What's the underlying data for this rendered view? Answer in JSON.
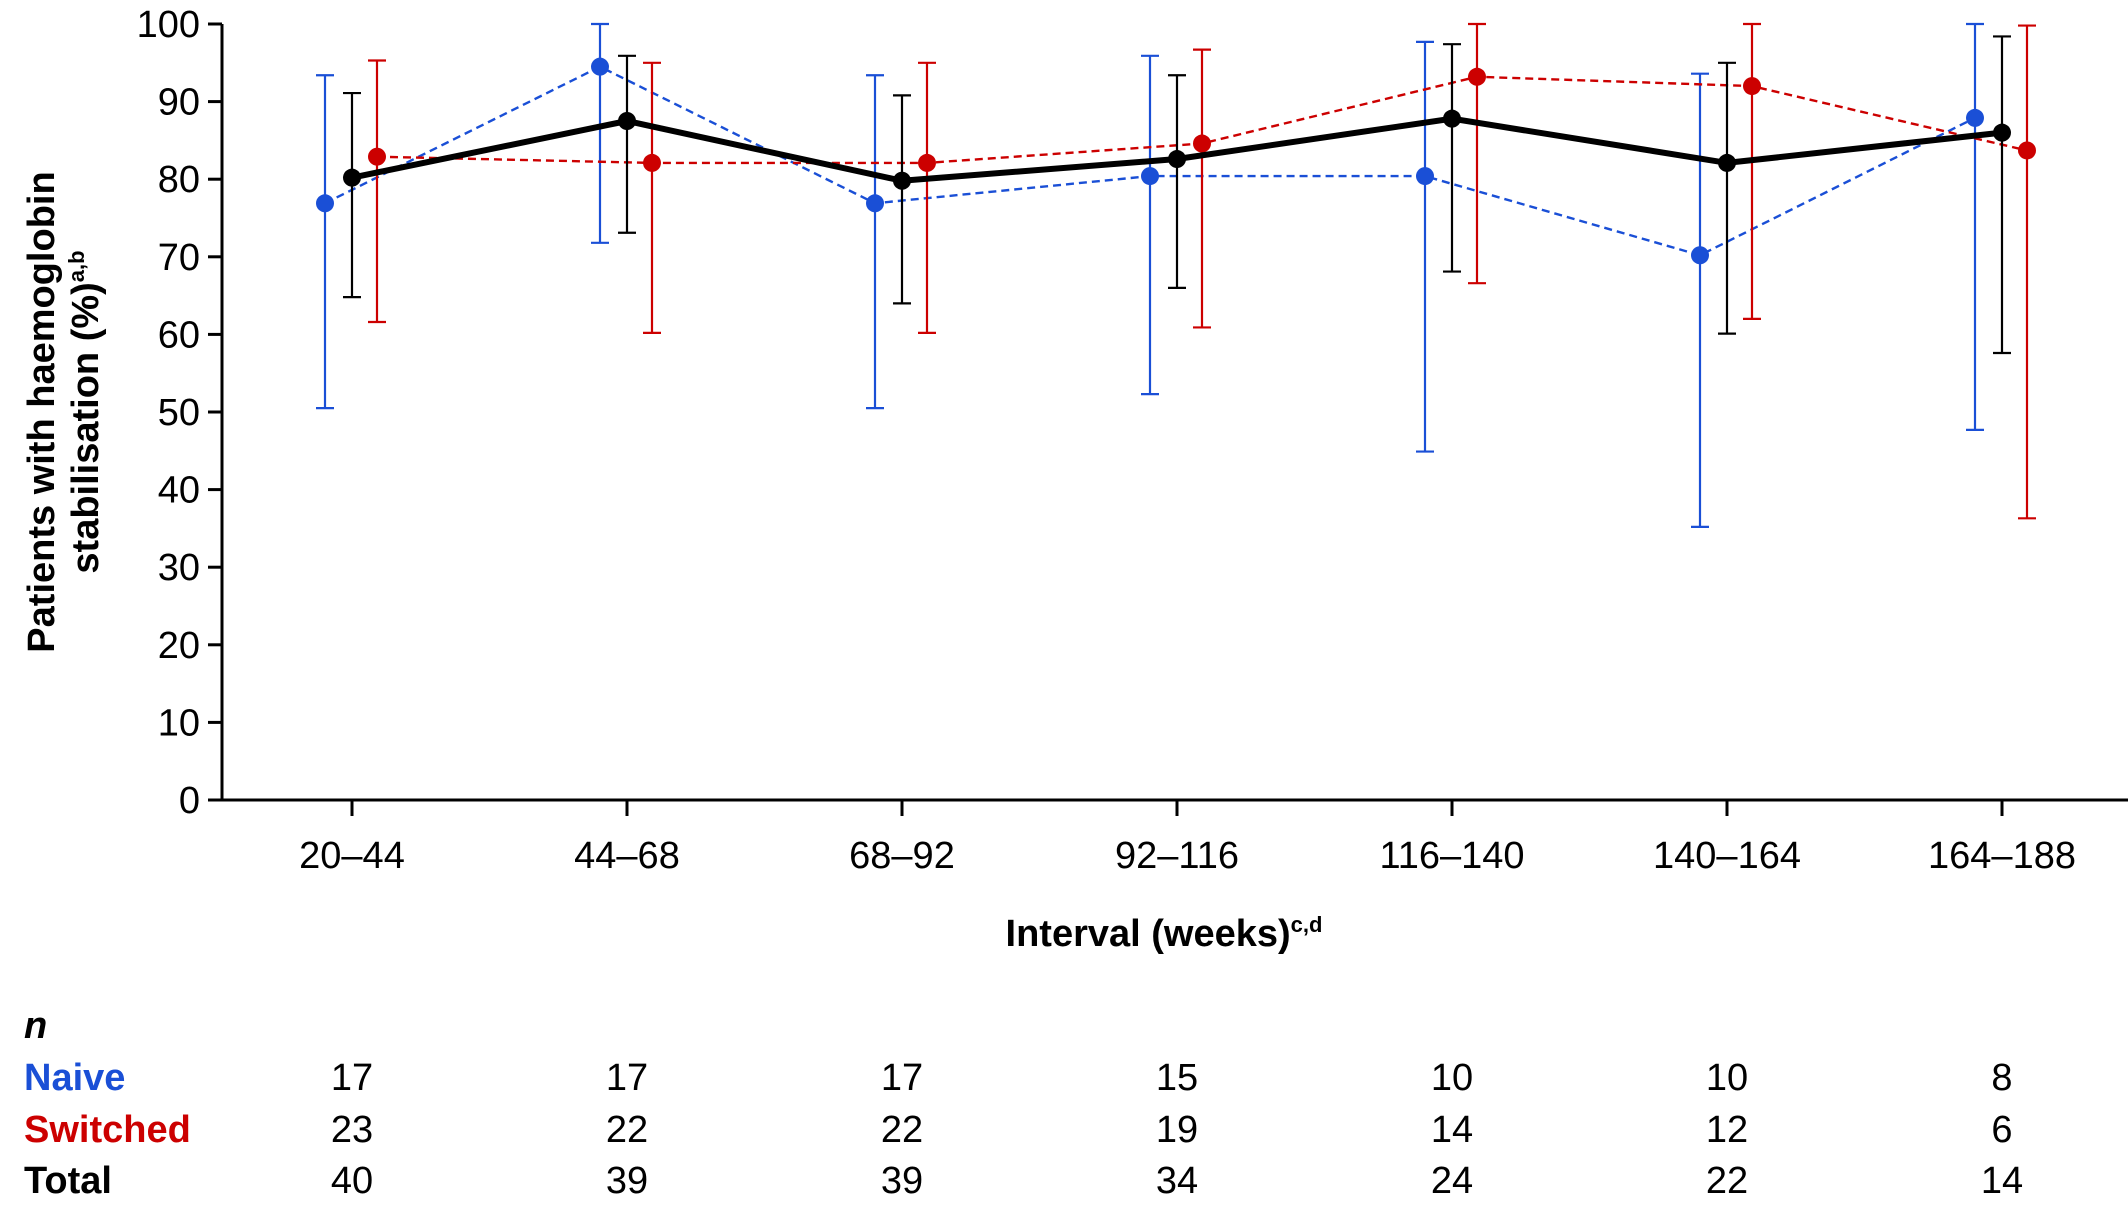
{
  "chart_data": {
    "type": "line",
    "xlabel": "Interval (weeks)",
    "xlabel_sup": "c,d",
    "ylabel_line1": "Patients with haemoglobin",
    "ylabel_line2": "stabilisation (%)",
    "ylabel_sup": "a,b",
    "ylim": [
      0,
      100
    ],
    "yticks": [
      0,
      10,
      20,
      30,
      40,
      50,
      60,
      70,
      80,
      90,
      100
    ],
    "categories": [
      "20–44",
      "44–68",
      "68–92",
      "92–116",
      "116–140",
      "140–164",
      "164–188"
    ],
    "grid": false,
    "series": [
      {
        "name": "Naive",
        "color": "#1a4fd6",
        "style": "dashed",
        "values": [
          76.9,
          94.5,
          76.9,
          80.4,
          80.4,
          70.2,
          87.9
        ],
        "err_low": [
          50.5,
          71.8,
          50.5,
          52.3,
          44.9,
          35.2,
          47.7
        ],
        "err_high": [
          93.4,
          100,
          93.4,
          95.9,
          97.7,
          93.6,
          100
        ]
      },
      {
        "name": "Switched",
        "color": "#cc0000",
        "style": "dashed",
        "values": [
          82.9,
          82.1,
          82.1,
          84.6,
          93.2,
          92.0,
          83.7
        ],
        "err_low": [
          61.6,
          60.2,
          60.2,
          60.9,
          66.6,
          62.0,
          36.3
        ],
        "err_high": [
          95.3,
          95.0,
          95.0,
          96.7,
          100,
          100,
          99.8
        ]
      },
      {
        "name": "Total",
        "color": "#000000",
        "style": "solid",
        "values": [
          80.2,
          87.5,
          79.8,
          82.6,
          87.8,
          82.1,
          86.0
        ],
        "err_low": [
          64.8,
          73.1,
          64.0,
          66.0,
          68.1,
          60.1,
          57.6
        ],
        "err_high": [
          91.1,
          95.9,
          90.8,
          93.4,
          97.4,
          95.0,
          98.4
        ]
      }
    ]
  },
  "n_table": {
    "header": "n",
    "rows": [
      {
        "label": "Naive",
        "color": "#1a4fd6",
        "values": [
          "17",
          "17",
          "17",
          "15",
          "10",
          "10",
          "8"
        ]
      },
      {
        "label": "Switched",
        "color": "#cc0000",
        "values": [
          "23",
          "22",
          "22",
          "19",
          "14",
          "12",
          "6"
        ]
      },
      {
        "label": "Total",
        "color": "#000000",
        "values": [
          "40",
          "39",
          "39",
          "34",
          "24",
          "22",
          "14"
        ]
      }
    ]
  }
}
